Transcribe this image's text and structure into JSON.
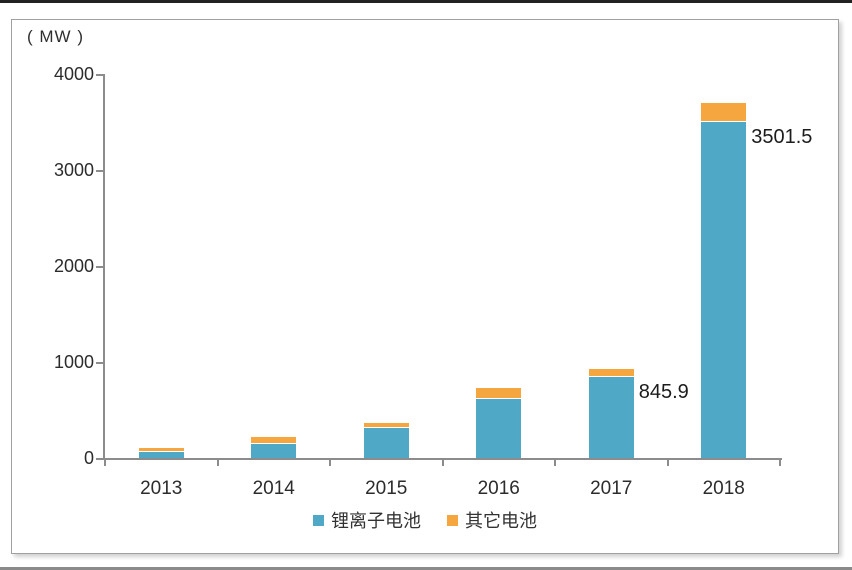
{
  "chart_data": {
    "type": "bar",
    "stacked": true,
    "title": "",
    "ylabel": "( MW )",
    "xlabel": "",
    "ylim": [
      0,
      4000
    ],
    "yticks": [
      0,
      1000,
      2000,
      3000,
      4000
    ],
    "grid": false,
    "legend_position": "bottom",
    "categories": [
      "2013",
      "2014",
      "2015",
      "2016",
      "2017",
      "2018"
    ],
    "series": [
      {
        "name": "锂离子电池",
        "color": "#4FA8C5",
        "values": [
          60,
          145,
          310,
          615,
          845.9,
          3501.5
        ]
      },
      {
        "name": "其它电池",
        "color": "#F6A63E",
        "values": [
          30,
          60,
          45,
          105,
          68,
          187
        ]
      }
    ],
    "annotations": [
      {
        "category": "2017",
        "series": "锂离子电池",
        "text": "845.9"
      },
      {
        "category": "2018",
        "series": "锂离子电池",
        "text": "3501.5"
      }
    ],
    "colors": {
      "axis": "#8c8c8c",
      "text": "#2c2c2c"
    }
  }
}
